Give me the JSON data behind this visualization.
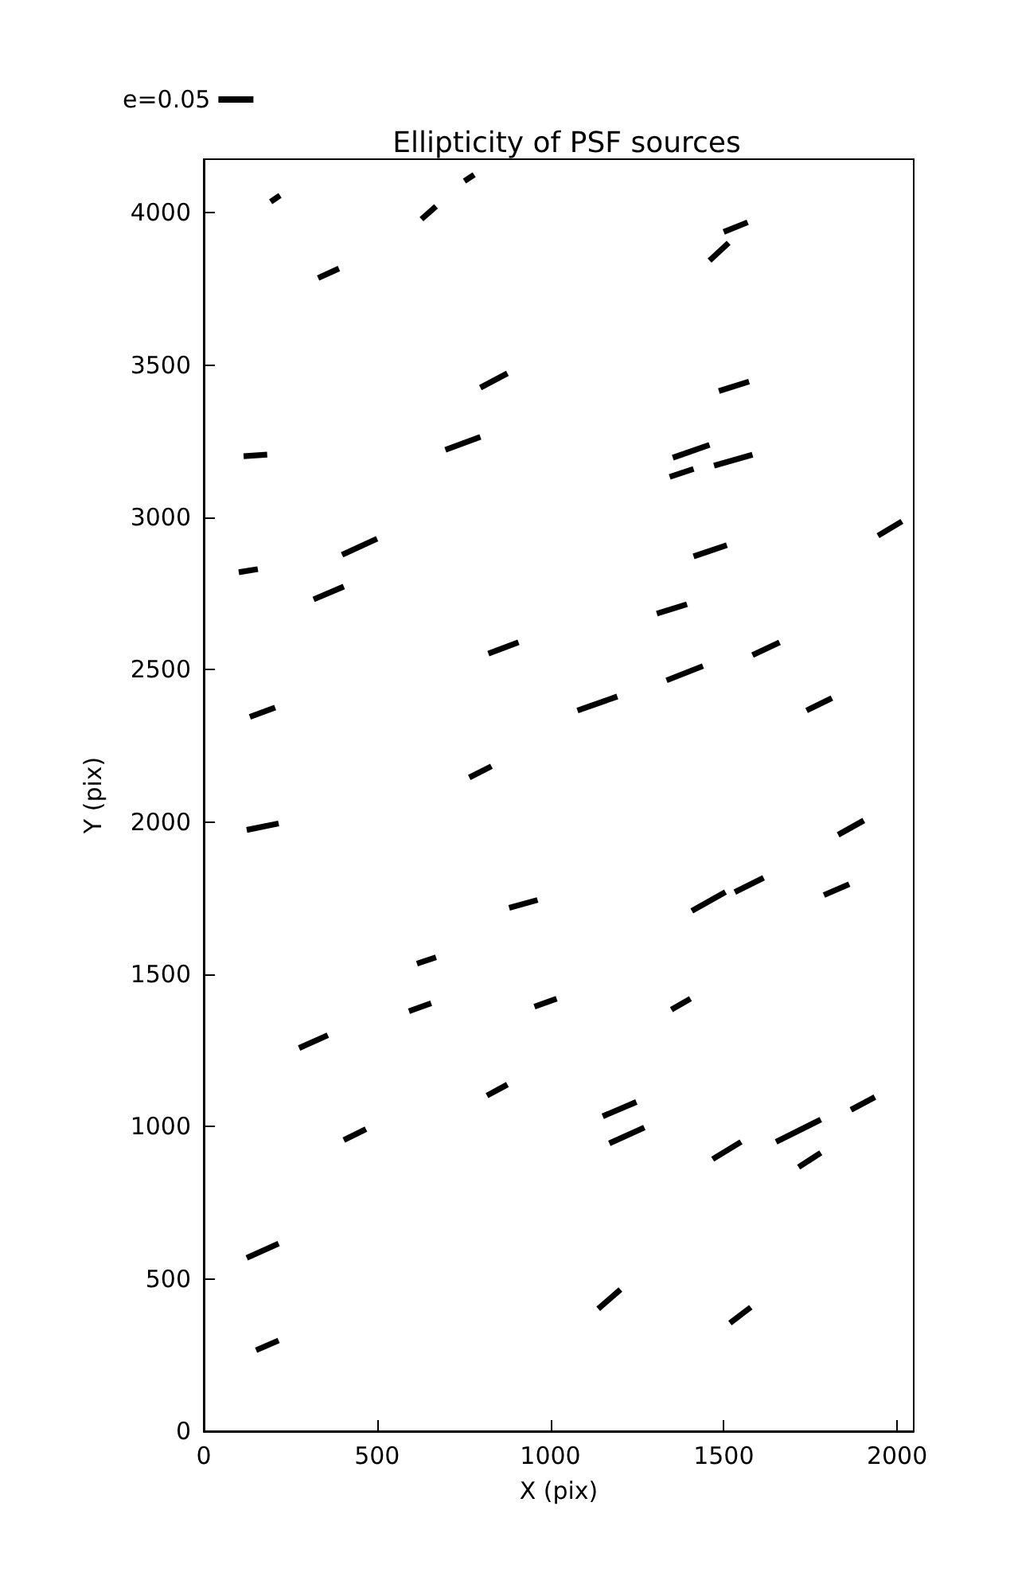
{
  "chart_data": {
    "type": "line",
    "title": "Ellipticity of PSF sources",
    "xlabel": "X (pix)",
    "ylabel": "Y (pix)",
    "xlim": [
      0,
      2048
    ],
    "ylim": [
      0,
      4176
    ],
    "xticks": [
      0,
      500,
      1000,
      1500,
      2000
    ],
    "yticks": [
      0,
      500,
      1000,
      1500,
      2000,
      2500,
      3000,
      3500,
      4000
    ],
    "grid": false,
    "legend": "top left",
    "marker": "none",
    "line_style": "solid",
    "series": [
      {
        "name": "e=0.05",
        "color": "#000000",
        "x": [
          193,
          220
        ],
        "values": [
          4036,
          4057
        ]
      },
      {
        "color": "#000000",
        "x": [
          628,
          670
        ],
        "values": [
          3979,
          4021
        ]
      },
      {
        "color": "#000000",
        "x": [
          752,
          780
        ],
        "values": [
          4104,
          4125
        ]
      },
      {
        "color": "#000000",
        "x": [
          330,
          390
        ],
        "values": [
          3786,
          3817
        ]
      },
      {
        "color": "#000000",
        "x": [
          1459,
          1514
        ],
        "values": [
          3843,
          3901
        ]
      },
      {
        "color": "#000000",
        "x": [
          1500,
          1569
        ],
        "values": [
          3937,
          3969
        ]
      },
      {
        "color": "#000000",
        "x": [
          798,
          876
        ],
        "values": [
          3426,
          3473
        ]
      },
      {
        "color": "#000000",
        "x": [
          697,
          798
        ],
        "values": [
          3222,
          3264
        ]
      },
      {
        "color": "#000000",
        "x": [
          115,
          183
        ],
        "values": [
          3201,
          3206
        ]
      },
      {
        "color": "#000000",
        "x": [
          1486,
          1573
        ],
        "values": [
          3415,
          3446
        ]
      },
      {
        "color": "#000000",
        "x": [
          1353,
          1459
        ],
        "values": [
          3196,
          3238
        ]
      },
      {
        "color": "#000000",
        "x": [
          1344,
          1413
        ],
        "values": [
          3133,
          3159
        ]
      },
      {
        "color": "#000000",
        "x": [
          1472,
          1583
        ],
        "values": [
          3170,
          3206
        ]
      },
      {
        "color": "#000000",
        "x": [
          101,
          156
        ],
        "values": [
          2820,
          2830
        ]
      },
      {
        "color": "#000000",
        "x": [
          317,
          404
        ],
        "values": [
          2731,
          2773
        ]
      },
      {
        "color": "#000000",
        "x": [
          399,
          500
        ],
        "values": [
          2877,
          2930
        ]
      },
      {
        "color": "#000000",
        "x": [
          1413,
          1509
        ],
        "values": [
          2872,
          2909
        ]
      },
      {
        "color": "#000000",
        "x": [
          1945,
          2014
        ],
        "values": [
          2940,
          2987
        ]
      },
      {
        "color": "#000000",
        "x": [
          1307,
          1394
        ],
        "values": [
          2684,
          2715
        ]
      },
      {
        "color": "#000000",
        "x": [
          821,
          908
        ],
        "values": [
          2553,
          2590
        ]
      },
      {
        "color": "#000000",
        "x": [
          1335,
          1440
        ],
        "values": [
          2465,
          2512
        ]
      },
      {
        "color": "#000000",
        "x": [
          1583,
          1661
        ],
        "values": [
          2548,
          2590
        ]
      },
      {
        "color": "#000000",
        "x": [
          1078,
          1193
        ],
        "values": [
          2366,
          2412
        ]
      },
      {
        "color": "#000000",
        "x": [
          1739,
          1812
        ],
        "values": [
          2366,
          2407
        ]
      },
      {
        "color": "#000000",
        "x": [
          133,
          206
        ],
        "values": [
          2345,
          2376
        ]
      },
      {
        "color": "#000000",
        "x": [
          766,
          830
        ],
        "values": [
          2146,
          2183
        ]
      },
      {
        "color": "#000000",
        "x": [
          124,
          216
        ],
        "values": [
          1974,
          1995
        ]
      },
      {
        "color": "#000000",
        "x": [
          1830,
          1904
        ],
        "values": [
          1958,
          2005
        ]
      },
      {
        "color": "#000000",
        "x": [
          881,
          963
        ],
        "values": [
          1718,
          1744
        ]
      },
      {
        "color": "#000000",
        "x": [
          1408,
          1505
        ],
        "values": [
          1708,
          1770
        ]
      },
      {
        "color": "#000000",
        "x": [
          1532,
          1615
        ],
        "values": [
          1770,
          1817
        ]
      },
      {
        "color": "#000000",
        "x": [
          1789,
          1862
        ],
        "values": [
          1760,
          1796
        ]
      },
      {
        "color": "#000000",
        "x": [
          615,
          670
        ],
        "values": [
          1535,
          1556
        ]
      },
      {
        "color": "#000000",
        "x": [
          592,
          656
        ],
        "values": [
          1379,
          1405
        ]
      },
      {
        "color": "#000000",
        "x": [
          275,
          358
        ],
        "values": [
          1258,
          1300
        ]
      },
      {
        "color": "#000000",
        "x": [
          954,
          1018
        ],
        "values": [
          1394,
          1420
        ]
      },
      {
        "color": "#000000",
        "x": [
          1349,
          1404
        ],
        "values": [
          1384,
          1420
        ]
      },
      {
        "color": "#000000",
        "x": [
          404,
          468
        ],
        "values": [
          956,
          992
        ]
      },
      {
        "color": "#000000",
        "x": [
          817,
          876
        ],
        "values": [
          1102,
          1138
        ]
      },
      {
        "color": "#000000",
        "x": [
          1151,
          1248
        ],
        "values": [
          1034,
          1081
        ]
      },
      {
        "color": "#000000",
        "x": [
          1170,
          1271
        ],
        "values": [
          945,
          997
        ]
      },
      {
        "color": "#000000",
        "x": [
          1468,
          1550
        ],
        "values": [
          893,
          950
        ]
      },
      {
        "color": "#000000",
        "x": [
          1651,
          1780
        ],
        "values": [
          950,
          1023
        ]
      },
      {
        "color": "#000000",
        "x": [
          1716,
          1780
        ],
        "values": [
          867,
          914
        ]
      },
      {
        "color": "#000000",
        "x": [
          1867,
          1936
        ],
        "values": [
          1055,
          1097
        ]
      },
      {
        "color": "#000000",
        "x": [
          124,
          216
        ],
        "values": [
          569,
          616
        ]
      },
      {
        "color": "#000000",
        "x": [
          151,
          216
        ],
        "values": [
          266,
          298
        ]
      },
      {
        "color": "#000000",
        "x": [
          1138,
          1202
        ],
        "values": [
          402,
          465
        ]
      },
      {
        "color": "#000000",
        "x": [
          1518,
          1578
        ],
        "values": [
          355,
          407
        ]
      }
    ]
  }
}
